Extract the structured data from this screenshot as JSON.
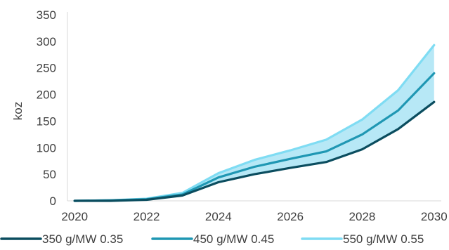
{
  "chart_data": {
    "type": "area",
    "x": [
      2020,
      2021,
      2022,
      2023,
      2024,
      2025,
      2026,
      2027,
      2028,
      2029,
      2030
    ],
    "series": [
      {
        "name": "350 g/MW 0.35",
        "color": "#0b4d5f",
        "values": [
          0,
          0,
          2,
          10,
          35,
          50,
          62,
          73,
          97,
          135,
          186
        ]
      },
      {
        "name": "450 g/MW 0.45",
        "color": "#1f97b3",
        "values": [
          0,
          1,
          3,
          12,
          44,
          64,
          79,
          93,
          125,
          170,
          240
        ]
      },
      {
        "name": "550 g/MW 0.55",
        "color": "#7fdcf3",
        "values": [
          0,
          1,
          4,
          15,
          52,
          77,
          95,
          115,
          153,
          208,
          293
        ]
      }
    ],
    "band": {
      "between": [
        "350 g/MW 0.35",
        "550 g/MW 0.55"
      ],
      "color": "#b7e8f6"
    },
    "ylabel": "koz",
    "xlabel": "",
    "ylim": [
      0,
      350
    ],
    "yticks": [
      0,
      50,
      100,
      150,
      200,
      250,
      300,
      350
    ],
    "xticks": [
      2020,
      2022,
      2024,
      2026,
      2028,
      2030
    ],
    "xlim": [
      2019.8,
      2030.2
    ],
    "grid": false,
    "legend": "bottom"
  }
}
